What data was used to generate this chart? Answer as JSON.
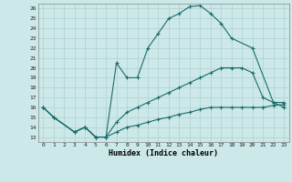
{
  "xlabel": "Humidex (Indice chaleur)",
  "xlim": [
    -0.5,
    23.5
  ],
  "ylim": [
    12.5,
    26.5
  ],
  "xticks": [
    0,
    1,
    2,
    3,
    4,
    5,
    6,
    7,
    8,
    9,
    10,
    11,
    12,
    13,
    14,
    15,
    16,
    17,
    18,
    19,
    20,
    21,
    22,
    23
  ],
  "yticks": [
    13,
    14,
    15,
    16,
    17,
    18,
    19,
    20,
    21,
    22,
    23,
    24,
    25,
    26
  ],
  "background_color": "#cce8e8",
  "grid_color": "#b0d0d0",
  "line_color": "#1a6b6b",
  "line1_x": [
    0,
    1,
    3,
    4,
    5,
    6,
    7,
    8,
    9,
    10,
    11,
    12,
    13,
    14,
    15,
    16,
    17,
    18,
    20,
    22,
    23
  ],
  "line1_y": [
    16,
    15,
    13.5,
    14,
    13,
    13,
    20.5,
    19,
    19,
    22,
    23.5,
    25,
    25.5,
    26.2,
    26.3,
    25.5,
    24.5,
    23,
    22,
    16.5,
    16
  ],
  "line2_x": [
    0,
    1,
    3,
    4,
    5,
    6,
    7,
    8,
    9,
    10,
    11,
    12,
    13,
    14,
    15,
    16,
    17,
    18,
    19,
    20,
    21,
    22,
    23
  ],
  "line2_y": [
    16,
    15,
    13.5,
    14,
    13,
    13,
    14.5,
    15.5,
    16,
    16.5,
    17,
    17.5,
    18,
    18.5,
    19,
    19.5,
    20,
    20,
    20,
    19.5,
    17,
    16.5,
    16.5
  ],
  "line3_x": [
    0,
    1,
    3,
    4,
    5,
    6,
    7,
    8,
    9,
    10,
    11,
    12,
    13,
    14,
    15,
    16,
    17,
    18,
    19,
    20,
    21,
    22,
    23
  ],
  "line3_y": [
    16,
    15,
    13.5,
    14,
    13,
    13,
    13.5,
    14,
    14.2,
    14.5,
    14.8,
    15,
    15.3,
    15.5,
    15.8,
    16,
    16,
    16,
    16,
    16,
    16,
    16.2,
    16.3
  ]
}
